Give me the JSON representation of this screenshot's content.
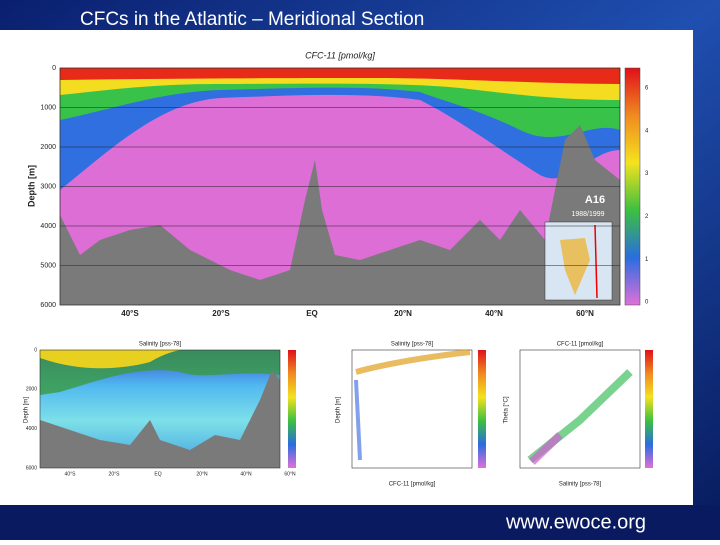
{
  "slide": {
    "title": "CFCs in the Atlantic – Meridional Section",
    "footer": "www.ewoce.org",
    "main_panel": {
      "title": "CFC-11 [pmol/kg]",
      "y_label": "Depth [m]",
      "y_ticks": [
        "0",
        "1000",
        "2000",
        "3000",
        "4000",
        "5000",
        "6000"
      ],
      "x_ticks": [
        "40°S",
        "20°S",
        "EQ",
        "20°N",
        "40°N",
        "60°N"
      ],
      "colorbar_ticks": [
        "6",
        "4",
        "3",
        "2",
        "1",
        "0"
      ],
      "section_label": "A16",
      "section_years": "1988/1999"
    },
    "lower_panels": [
      {
        "title": "Salinity [pss-78]",
        "y_label": "Depth [m]",
        "y_ticks": [
          "0",
          "2000",
          "4000",
          "6000"
        ],
        "x_ticks": [
          "40°S",
          "20°S",
          "EQ",
          "20°N",
          "40°N",
          "60°N"
        ]
      },
      {
        "title": "Salinity [pss-78]",
        "y_label": "Depth [m]",
        "x_label": "CFC-11 [pmol/kg]"
      },
      {
        "title": "CFC-11 [pmol/kg]",
        "y_label": "Theta [°C]",
        "x_label": "Salinity [pss-78]"
      }
    ]
  }
}
